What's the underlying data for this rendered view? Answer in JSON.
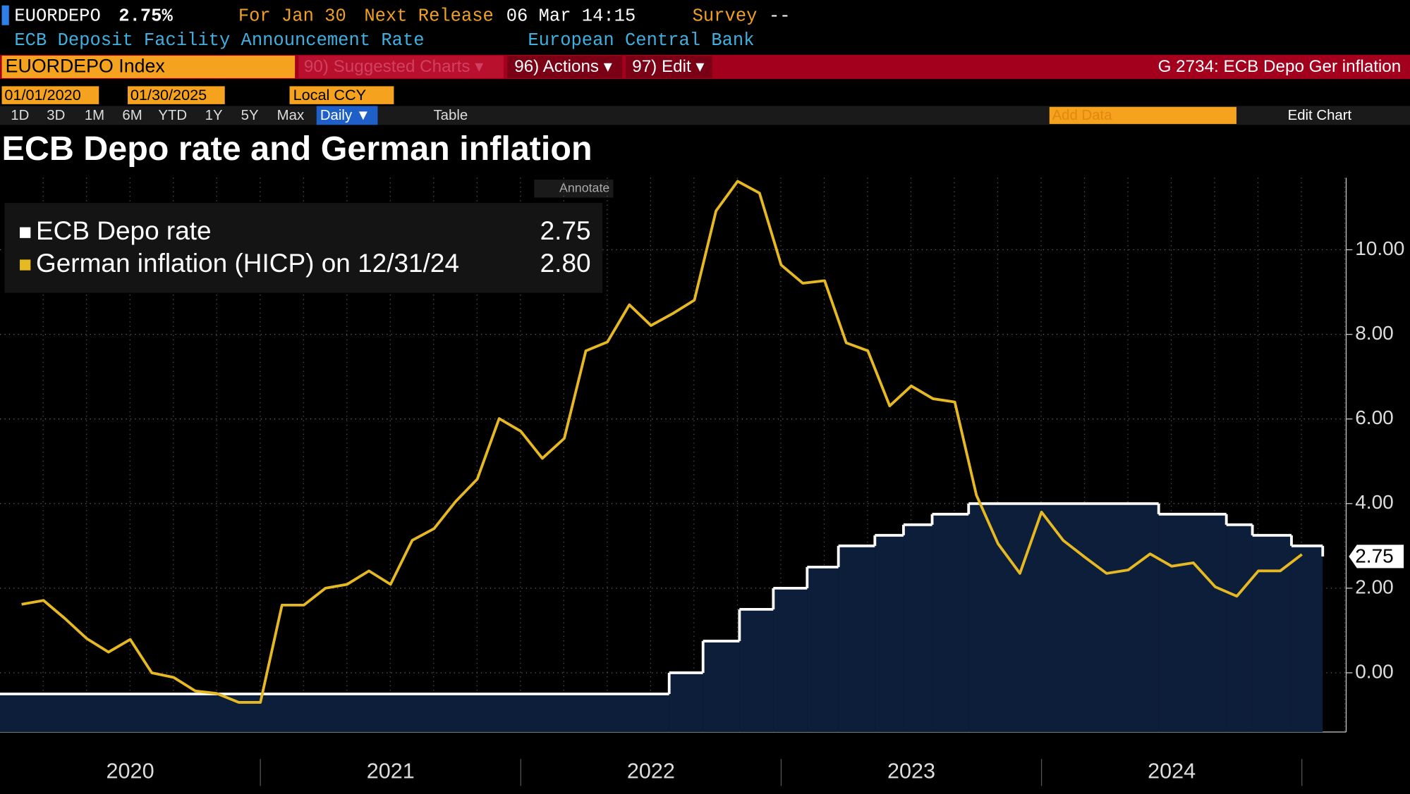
{
  "ui": {
    "ticker": "EUORDEPO",
    "last": "2.75%",
    "for_date": "For Jan 30",
    "next_release_label": "Next Release",
    "next_release": "06 Mar 14:15",
    "survey_label": "Survey",
    "survey": "--",
    "description": "ECB Deposit Facility Announcement Rate",
    "source": "European Central Bank",
    "security": "EUORDEPO Index",
    "menu_suggested": "90) Suggested Charts ▾",
    "menu_actions": "96) Actions ▾",
    "menu_edit": "97) Edit ▾",
    "chart_id": "G 2734: ECB Depo Ger inflation",
    "start_date": "01/01/2020",
    "end_date": "01/30/2025",
    "currency": "Local CCY",
    "periods": [
      "1D",
      "3D",
      "1M",
      "6M",
      "YTD",
      "1Y",
      "5Y",
      "Max"
    ],
    "frequency": "Daily ▼",
    "table": "Table",
    "add_data": "Add Data",
    "edit_chart": "Edit Chart",
    "annotate": "Annotate"
  },
  "chart_data": {
    "type": "line",
    "title": "ECB Depo rate and German inflation",
    "xlim": [
      2020,
      2025.17
    ],
    "xticks": [
      {
        "value": 2020.5,
        "label": "2020"
      },
      {
        "value": 2021.5,
        "label": "2021"
      },
      {
        "value": 2022.5,
        "label": "2022"
      },
      {
        "value": 2023.5,
        "label": "2023"
      },
      {
        "value": 2024.5,
        "label": "2024"
      }
    ],
    "ylim": [
      -1.4,
      11.7
    ],
    "yticks": [
      {
        "value": 0,
        "label": "0.00"
      },
      {
        "value": 2,
        "label": "2.00"
      },
      {
        "value": 4,
        "label": "4.00"
      },
      {
        "value": 6,
        "label": "6.00"
      },
      {
        "value": 8,
        "label": "8.00"
      },
      {
        "value": 10,
        "label": "10.00"
      }
    ],
    "grid": true,
    "series": [
      {
        "name": "ECB Depo rate",
        "color": "#ffffff",
        "fill": "#0d1e3b",
        "step": true,
        "legend_value": "2.75",
        "x": [
          2020,
          2022.57,
          2022.7,
          2022.84,
          2022.97,
          2023.1,
          2023.22,
          2023.36,
          2023.47,
          2023.58,
          2023.72,
          2024.45,
          2024.71,
          2024.81,
          2024.96,
          2025.08
        ],
        "values": [
          -0.5,
          0,
          0.75,
          1.5,
          2,
          2.5,
          3,
          3.25,
          3.5,
          3.75,
          4,
          3.75,
          3.5,
          3.25,
          3,
          2.75
        ]
      },
      {
        "name": "German inflation (HICP) on 12/31/24",
        "color": "#e6b922",
        "legend_value": "2.80",
        "x": [
          2020.083,
          2020.167,
          2020.25,
          2020.333,
          2020.417,
          2020.5,
          2020.583,
          2020.667,
          2020.75,
          2020.833,
          2020.917,
          2021,
          2021.083,
          2021.167,
          2021.25,
          2021.333,
          2021.417,
          2021.5,
          2021.583,
          2021.667,
          2021.75,
          2021.833,
          2021.917,
          2022,
          2022.083,
          2022.167,
          2022.25,
          2022.333,
          2022.417,
          2022.5,
          2022.583,
          2022.667,
          2022.75,
          2022.833,
          2022.917,
          2023,
          2023.083,
          2023.167,
          2023.25,
          2023.333,
          2023.417,
          2023.5,
          2023.583,
          2023.667,
          2023.75,
          2023.833,
          2023.917,
          2024,
          2024.083,
          2024.167,
          2024.25,
          2024.333,
          2024.417,
          2024.5,
          2024.583,
          2024.667,
          2024.75,
          2024.833,
          2024.917,
          2025
        ],
        "values": [
          1.62,
          1.71,
          1.28,
          0.81,
          0.49,
          0.79,
          0,
          -0.11,
          -0.43,
          -0.49,
          -0.7,
          -0.7,
          1.6,
          1.6,
          2,
          2.09,
          2.41,
          2.09,
          3.13,
          3.41,
          4.05,
          4.58,
          6.01,
          5.71,
          5.07,
          5.54,
          7.61,
          7.82,
          8.7,
          8.21,
          8.49,
          8.81,
          10.92,
          11.62,
          11.34,
          9.64,
          9.21,
          9.27,
          7.8,
          7.61,
          6.31,
          6.78,
          6.48,
          6.4,
          4.2,
          3.05,
          2.35,
          3.8,
          3.13,
          2.73,
          2.35,
          2.43,
          2.81,
          2.52,
          2.6,
          2.03,
          1.81,
          2.41,
          2.41,
          2.8
        ]
      }
    ]
  }
}
